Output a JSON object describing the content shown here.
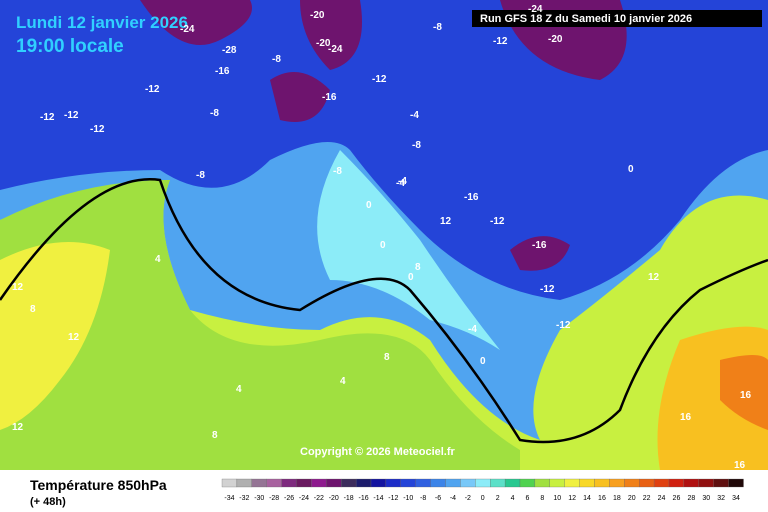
{
  "header": {
    "date": "Lundi 12 janvier 2026",
    "time": "19:00 locale",
    "run": "Run GFS 18 Z du Samedi 10 janvier 2026"
  },
  "footer": {
    "title": "Température 850hPa",
    "lead": "(+ 48h)",
    "copyright": "Copyright © 2026 Meteociel.fr"
  },
  "scale": {
    "labels": [
      "-34",
      "-32",
      "-30",
      "-28",
      "-26",
      "-24",
      "-22",
      "-20",
      "-18",
      "-16",
      "-14",
      "-12",
      "-10",
      "-8",
      "-6",
      "-4",
      "-2",
      "0",
      "2",
      "4",
      "6",
      "8",
      "10",
      "12",
      "14",
      "16",
      "18",
      "20",
      "22",
      "24",
      "26",
      "28",
      "30",
      "32",
      "34"
    ],
    "colors": [
      "#d2d2d2",
      "#b0b0b0",
      "#957595",
      "#a8629f",
      "#7e2a7e",
      "#6a1a60",
      "#8e1a8e",
      "#6e146e",
      "#3c2c5c",
      "#1c1c6c",
      "#1414a0",
      "#1c2cc8",
      "#2444d8",
      "#3060e0",
      "#3c84e8",
      "#50a4f0",
      "#78c8f8",
      "#8cecf8",
      "#5ce0c8",
      "#28c890",
      "#50d250",
      "#a0e040",
      "#c8f040",
      "#f0f040",
      "#f8d828",
      "#f8c020",
      "#f8a020",
      "#f08018",
      "#e86014",
      "#e04010",
      "#d02010",
      "#b01010",
      "#901010",
      "#601010",
      "#200808"
    ]
  },
  "map": {
    "labels": [
      "-24",
      "-20",
      "-28",
      "-16",
      "-20",
      "-24",
      "-12",
      "-8",
      "-12",
      "-12",
      "-8",
      "-16",
      "-12",
      "-8",
      "-12",
      "-16",
      "-8",
      "-8",
      "-4",
      "-4",
      "-8",
      "0",
      "0",
      "-12",
      "-16",
      "-12",
      "-12",
      "0",
      "-4",
      "0",
      "8",
      "4",
      "12",
      "12",
      "8",
      "4",
      "4",
      "8",
      "12",
      "8",
      "12",
      "16",
      "16",
      "-20",
      "-24",
      "-12",
      "0",
      "-4",
      "12",
      "16"
    ]
  }
}
